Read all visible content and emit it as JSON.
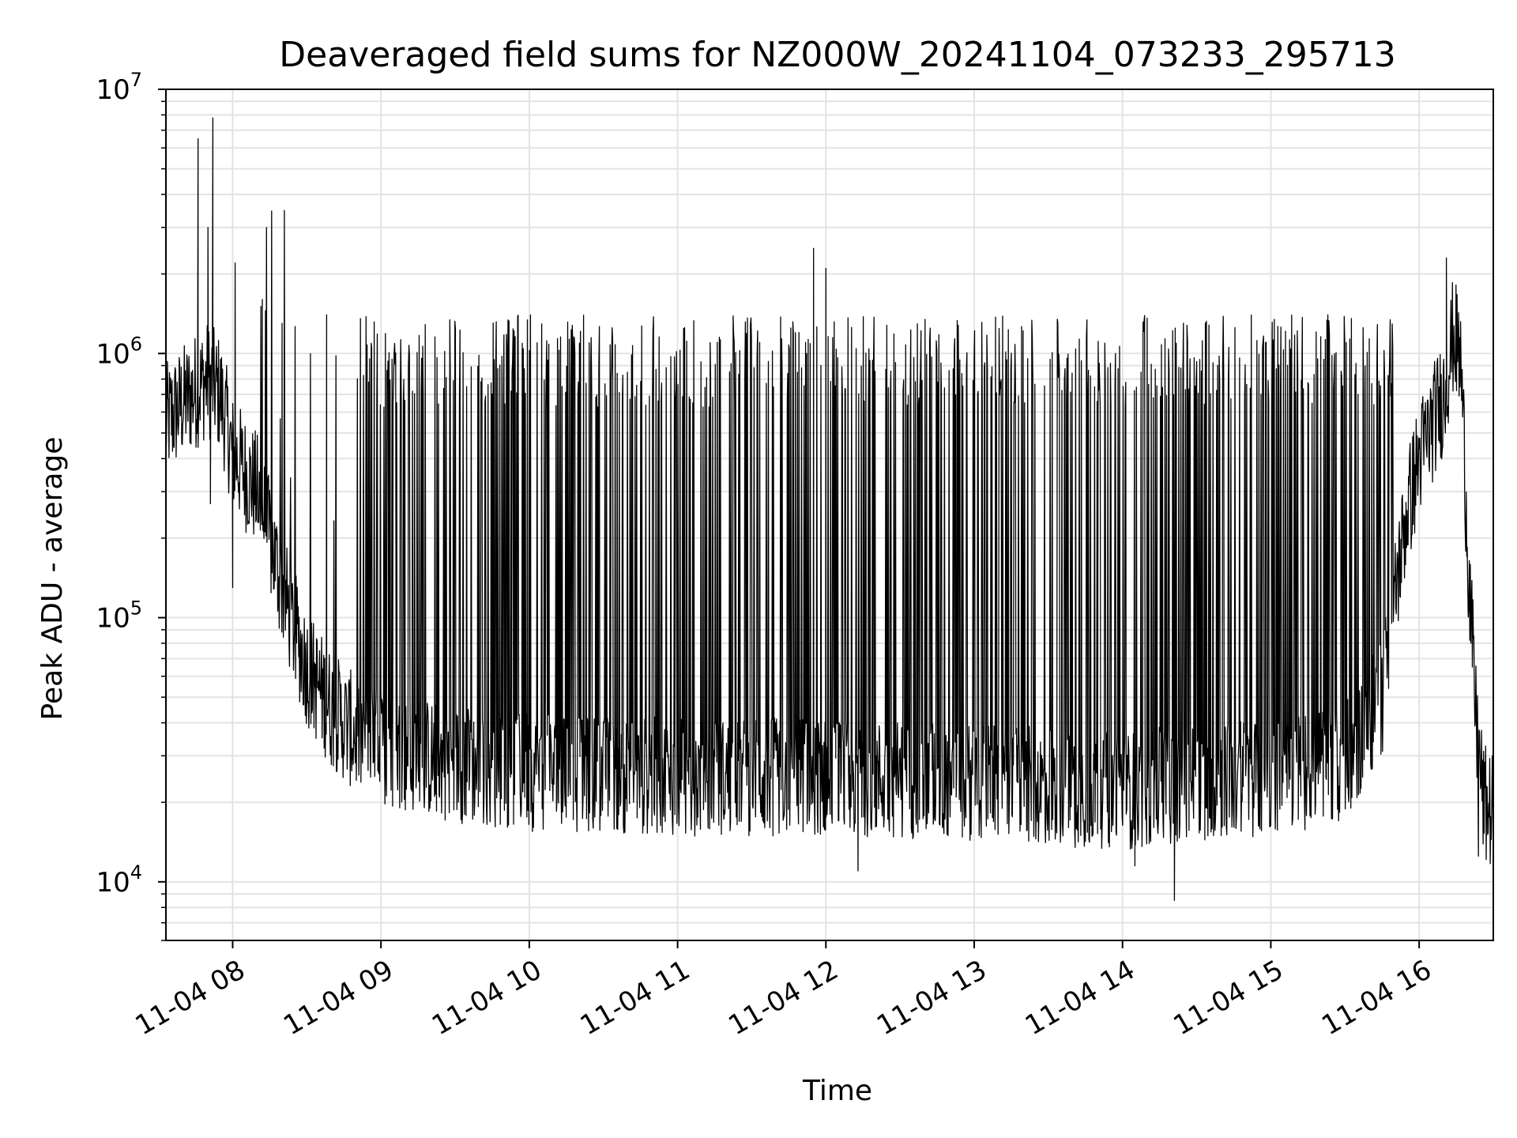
{
  "chart_data": {
    "type": "line",
    "title": "Deaveraged field sums for NZ000W_20241104_073233_295713",
    "xlabel": "Time",
    "ylabel": "Peak ADU - average",
    "yscale": "log",
    "xlim": [
      "2024-11-04 07:33",
      "2024-11-04 16:30"
    ],
    "ylim": [
      6000,
      10000000
    ],
    "x_ticks": [
      "11-04 08",
      "11-04 09",
      "11-04 10",
      "11-04 11",
      "11-04 12",
      "11-04 13",
      "11-04 14",
      "11-04 15",
      "11-04 16"
    ],
    "y_ticks": [
      {
        "value": 10000,
        "base": "10",
        "exp": "4"
      },
      {
        "value": 100000,
        "base": "10",
        "exp": "5"
      },
      {
        "value": 1000000,
        "base": "10",
        "exp": "6"
      },
      {
        "value": 10000000,
        "base": "10",
        "exp": "7"
      }
    ],
    "grid": true,
    "line_color": "#000000",
    "series": [
      {
        "baseline": [
          [
            "2024-11-04 07:33",
            550000
          ],
          [
            "2024-11-04 07:40",
            650000
          ],
          [
            "2024-11-04 07:50",
            800000
          ],
          [
            "2024-11-04 07:55",
            700000
          ],
          [
            "2024-11-04 08:00",
            420000
          ],
          [
            "2024-11-04 08:10",
            300000
          ],
          [
            "2024-11-04 08:15",
            200000
          ],
          [
            "2024-11-04 08:20",
            130000
          ],
          [
            "2024-11-04 08:25",
            90000
          ],
          [
            "2024-11-04 08:30",
            65000
          ],
          [
            "2024-11-04 08:40",
            45000
          ],
          [
            "2024-11-04 08:50",
            36000
          ],
          [
            "2024-11-04 09:00",
            32000
          ],
          [
            "2024-11-04 09:30",
            28000
          ],
          [
            "2024-11-04 10:00",
            26000
          ],
          [
            "2024-11-04 11:00",
            25000
          ],
          [
            "2024-11-04 12:00",
            25000
          ],
          [
            "2024-11-04 13:00",
            24000
          ],
          [
            "2024-11-04 14:00",
            22000
          ],
          [
            "2024-11-04 14:30",
            24000
          ],
          [
            "2024-11-04 15:00",
            25000
          ],
          [
            "2024-11-04 15:30",
            28000
          ],
          [
            "2024-11-04 15:45",
            50000
          ],
          [
            "2024-11-04 15:50",
            120000
          ],
          [
            "2024-11-04 15:55",
            250000
          ],
          [
            "2024-11-04 16:00",
            400000
          ],
          [
            "2024-11-04 16:10",
            700000
          ],
          [
            "2024-11-04 16:14",
            1200000
          ],
          [
            "2024-11-04 16:17",
            900000
          ],
          [
            "2024-11-04 16:20",
            150000
          ],
          [
            "2024-11-04 16:23",
            40000
          ],
          [
            "2024-11-04 16:26",
            20000
          ],
          [
            "2024-11-04 16:30",
            18000
          ]
        ],
        "oscillation_window": [
          "2024-11-04 08:50",
          "2024-11-04 15:50"
        ],
        "oscillation_peak": 1100000,
        "spikes": [
          [
            "2024-11-04 07:46",
            6500000
          ],
          [
            "2024-11-04 07:52",
            7800000
          ],
          [
            "2024-11-04 07:50",
            3000000
          ],
          [
            "2024-11-04 08:01",
            2200000
          ],
          [
            "2024-11-04 08:12",
            1600000
          ],
          [
            "2024-11-04 08:20",
            1300000
          ],
          [
            "2024-11-04 08:38",
            1400000
          ],
          [
            "2024-11-04 11:55",
            2500000
          ],
          [
            "2024-11-04 12:00",
            2100000
          ],
          [
            "2024-11-04 16:11",
            2300000
          ]
        ],
        "dips": [
          [
            "2024-11-04 08:00",
            130000
          ],
          [
            "2024-11-04 07:51",
            270000
          ],
          [
            "2024-11-04 14:21",
            8500
          ],
          [
            "2024-11-04 12:13",
            11000
          ],
          [
            "2024-11-04 14:05",
            11500
          ],
          [
            "2024-11-04 16:24",
            12500
          ]
        ]
      }
    ]
  }
}
